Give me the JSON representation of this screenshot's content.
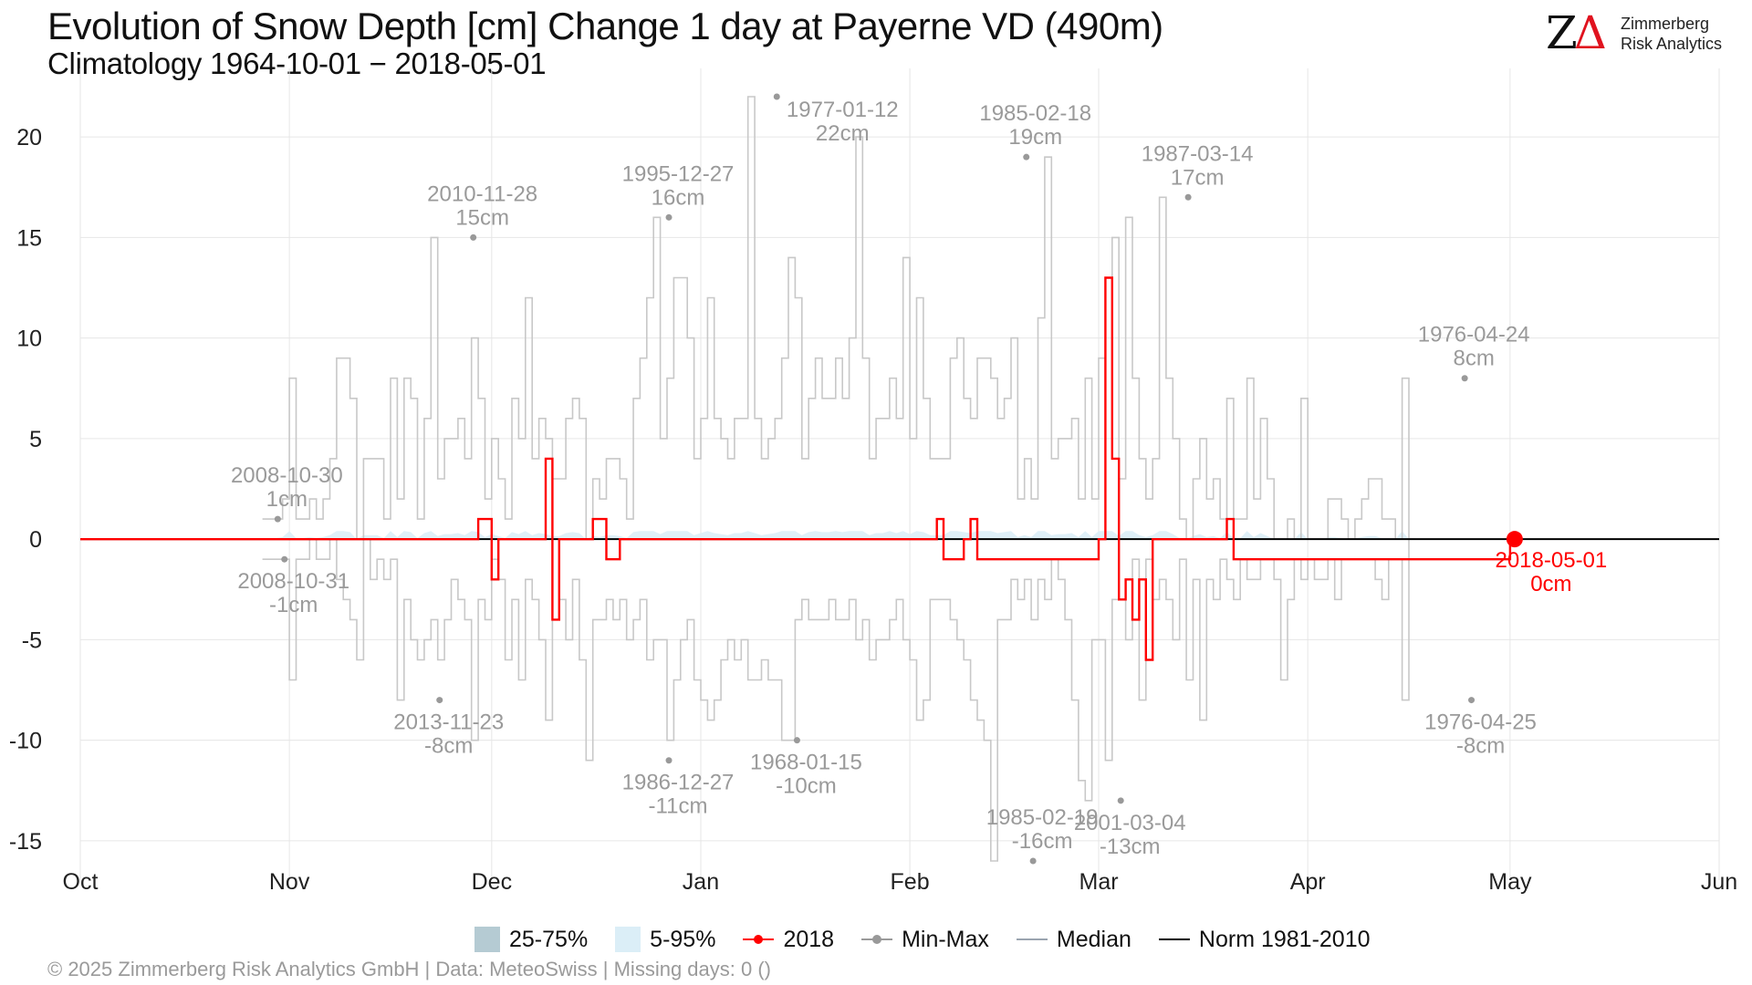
{
  "header": {
    "title": "Evolution of Snow Depth [cm] Change 1 day at Payerne  VD (490m)",
    "subtitle": "Climatology 1964-10-01 − 2018-05-01"
  },
  "logo": {
    "mark_z": "Z",
    "mark_delta": "Δ",
    "line1": "Zimmerberg",
    "line2": "Risk Analytics"
  },
  "footer": "©  2025 Zimmerberg Risk Analytics GmbH | Data: MeteoSwiss | Missing days: 0 ()",
  "legend": {
    "band_25_75": "25-75%",
    "band_5_95": "5-95%",
    "year": "2018",
    "minmax": "Min-Max",
    "median": "Median",
    "norm": "Norm 1981-2010"
  },
  "colors": {
    "band_25_75": "#b5cbd3",
    "band_5_95": "#dbeef7",
    "year": "#ff0000",
    "minmax": "#c8c8c8",
    "minmax_point": "#999999",
    "median": "#9aa4b0",
    "norm": "#000000",
    "annotation": "#9a9a9a",
    "grid": "#e6e6e6"
  },
  "chart_data": {
    "type": "line",
    "x_axis": {
      "start": "1964-10-01",
      "end": "1965-06-01",
      "tick_labels": [
        "Oct",
        "Nov",
        "Dec",
        "Jan",
        "Feb",
        "Mar",
        "Apr",
        "May",
        "Jun"
      ],
      "tick_days": [
        0,
        31,
        61,
        92,
        123,
        151,
        182,
        212,
        243
      ]
    },
    "y_axis": {
      "ylim": [
        -16.5,
        22.5
      ],
      "ticks": [
        -15,
        -10,
        -5,
        0,
        5,
        10,
        15,
        20
      ]
    },
    "grid": true,
    "legend_position": "bottom",
    "series": [
      {
        "name": "Min-Max",
        "kind": "step-range",
        "days": [
          27,
          28,
          29,
          30,
          31,
          32,
          33,
          34,
          35,
          36,
          37,
          38,
          39,
          40,
          41,
          42,
          43,
          44,
          45,
          46,
          47,
          48,
          49,
          50,
          51,
          52,
          53,
          54,
          55,
          56,
          57,
          58,
          59,
          60,
          61,
          62,
          63,
          64,
          65,
          66,
          67,
          68,
          69,
          70,
          71,
          72,
          73,
          74,
          75,
          76,
          77,
          78,
          79,
          80,
          81,
          82,
          83,
          84,
          85,
          86,
          87,
          88,
          89,
          90,
          91,
          92,
          93,
          94,
          95,
          96,
          97,
          98,
          99,
          100,
          101,
          102,
          103,
          104,
          105,
          106,
          107,
          108,
          109,
          110,
          111,
          112,
          113,
          114,
          115,
          116,
          117,
          118,
          119,
          120,
          121,
          122,
          123,
          124,
          125,
          126,
          127,
          128,
          129,
          130,
          131,
          132,
          133,
          134,
          135,
          136,
          137,
          138,
          139,
          140,
          141,
          142,
          143,
          144,
          145,
          146,
          147,
          148,
          149,
          150,
          151,
          152,
          153,
          154,
          155,
          156,
          157,
          158,
          159,
          160,
          161,
          162,
          163,
          164,
          165,
          166,
          167,
          168,
          169,
          170,
          171,
          172,
          173,
          174,
          175,
          176,
          177,
          178,
          179,
          180,
          181,
          182,
          183,
          184,
          185,
          186,
          187,
          188,
          189,
          190,
          191,
          192,
          193,
          194,
          195,
          196,
          197,
          198,
          199,
          200,
          201,
          202,
          203,
          204,
          205,
          206,
          207,
          208,
          209,
          210,
          211
        ],
        "max": [
          1,
          1,
          1,
          2,
          8,
          1,
          1,
          2,
          1,
          2,
          4,
          9,
          9,
          7,
          0,
          4,
          4,
          4,
          1,
          8,
          2,
          8,
          7,
          1,
          6,
          15,
          3,
          5,
          5,
          6,
          4,
          10,
          7,
          2,
          5,
          3,
          1,
          7,
          5,
          12,
          4,
          6,
          5,
          3,
          3,
          6,
          7,
          6,
          0,
          3,
          2,
          4,
          4,
          3,
          1,
          7,
          9,
          12,
          16,
          5,
          8,
          13,
          13,
          10,
          4,
          6,
          12,
          6,
          5,
          4,
          6,
          6,
          22,
          6,
          4,
          5,
          6,
          9,
          14,
          12,
          4,
          7,
          9,
          7,
          7,
          9,
          7,
          10,
          20,
          9,
          4,
          6,
          6,
          8,
          6,
          14,
          5,
          12,
          7,
          4,
          4,
          4,
          9,
          10,
          7,
          6,
          9,
          9,
          8,
          6,
          7,
          10,
          2,
          4,
          2,
          11,
          19,
          4,
          5,
          5,
          6,
          2,
          8,
          2,
          9,
          13,
          15,
          3,
          16,
          8,
          4,
          2,
          4,
          17,
          8,
          5,
          1,
          0,
          3,
          5,
          2,
          3,
          1,
          7,
          1,
          1,
          8,
          2,
          6,
          3,
          0,
          0,
          1,
          0,
          7,
          0,
          0,
          0,
          2,
          2,
          1,
          0,
          1,
          2,
          3,
          3,
          1,
          1,
          0,
          8,
          0
        ]
      },
      {
        "name": "Min-Max",
        "kind": "step-range-low",
        "min": [
          -1,
          -1,
          -1,
          -1,
          -7,
          -1,
          -1,
          0,
          -1,
          -1,
          0,
          -2,
          -3,
          -4,
          -6,
          0,
          -2,
          -1,
          -2,
          -1,
          -8,
          -3,
          -5,
          -6,
          -5,
          -4,
          -6,
          -4,
          -2,
          -3,
          -4,
          -10,
          -3,
          -4,
          -1,
          -2,
          -6,
          -3,
          -7,
          -2,
          -3,
          -5,
          -9,
          -4,
          -3,
          -5,
          -2,
          -6,
          -11,
          -4,
          -4,
          -3,
          -4,
          -3,
          -5,
          -4,
          -3,
          -6,
          -5,
          -5,
          -10,
          -7,
          -5,
          -4,
          -7,
          -8,
          -9,
          -8,
          -6,
          -5,
          -6,
          -5,
          -7,
          -7,
          -6,
          -7,
          -7,
          -10,
          -10,
          -4,
          -3,
          -4,
          -4,
          -4,
          -3,
          -4,
          -4,
          -3,
          -5,
          -4,
          -6,
          -5,
          -5,
          -4,
          -3,
          -5,
          -6,
          -9,
          -8,
          -3,
          -3,
          -3,
          -4,
          -5,
          -6,
          -8,
          -9,
          -10,
          -16,
          -4,
          -4,
          -2,
          -3,
          -2,
          -4,
          -2,
          -3,
          -1,
          -2,
          -4,
          -8,
          -12,
          -13,
          -5,
          -5,
          -11,
          -3,
          -3,
          -5,
          -1,
          -8,
          -1,
          -3,
          -2,
          -3,
          -5,
          -1,
          -7,
          -2,
          -9,
          -2,
          -3,
          -1,
          -2,
          -3,
          -1,
          -2,
          -2,
          -1,
          -1,
          -2,
          -7,
          -3,
          -1,
          -2,
          -1,
          -2,
          -2,
          -1,
          -3,
          -1,
          -1,
          -1,
          -1,
          -1,
          -2,
          -3,
          -1,
          -1,
          -8,
          0
        ]
      },
      {
        "name": "2018",
        "kind": "step",
        "days": [
          0,
          59,
          60,
          61,
          62,
          63,
          64,
          65,
          66,
          67,
          68,
          69,
          70,
          71,
          72,
          73,
          74,
          75,
          76,
          77,
          78,
          79,
          80,
          81,
          82,
          83,
          84,
          85,
          86,
          87,
          88,
          89,
          90,
          91,
          126,
          127,
          128,
          131,
          132,
          133,
          151,
          152,
          153,
          154,
          155,
          156,
          157,
          158,
          159,
          160,
          161,
          162,
          169,
          170,
          171,
          212
        ],
        "values": [
          0,
          1,
          1,
          -2,
          0,
          0,
          0,
          0,
          0,
          0,
          0,
          4,
          -4,
          0,
          0,
          0,
          0,
          0,
          1,
          1,
          -1,
          -1,
          0,
          0,
          0,
          0,
          0,
          0,
          0,
          0,
          0,
          0,
          0,
          0,
          0,
          1,
          -1,
          0,
          1,
          -1,
          0,
          13,
          4,
          -3,
          -2,
          -4,
          -2,
          -6,
          0,
          0,
          0,
          0,
          0,
          1,
          -1,
          0
        ]
      },
      {
        "name": "Norm 1981-2010",
        "kind": "line",
        "days": [
          0,
          243
        ],
        "values": [
          0,
          0
        ]
      }
    ],
    "extreme_points": [
      {
        "day": 29,
        "value": 1,
        "date": "2008-10-30",
        "label": "1cm",
        "anchor": "above"
      },
      {
        "day": 30,
        "value": -1,
        "date": "2008-10-31",
        "label": "-1cm",
        "anchor": "below"
      },
      {
        "day": 58,
        "value": 15,
        "date": "2010-11-28",
        "label": "15cm",
        "anchor": "above"
      },
      {
        "day": 53,
        "value": -8,
        "date": "2013-11-23",
        "label": "-8cm",
        "anchor": "below"
      },
      {
        "day": 87,
        "value": 16,
        "date": "1995-12-27",
        "label": "16cm",
        "anchor": "above"
      },
      {
        "day": 87,
        "value": -11,
        "date": "1986-12-27",
        "label": "-11cm",
        "anchor": "below"
      },
      {
        "day": 103,
        "value": 22,
        "date": "1977-01-12",
        "label": "22cm",
        "anchor": "right"
      },
      {
        "day": 106,
        "value": -10,
        "date": "1968-01-15",
        "label": "-10cm",
        "anchor": "below"
      },
      {
        "day": 140,
        "value": 19,
        "date": "1985-02-18",
        "label": "19cm",
        "anchor": "above"
      },
      {
        "day": 141,
        "value": -16,
        "date": "1985-02-19",
        "label": "-16cm",
        "anchor": "above"
      },
      {
        "day": 154,
        "value": -13,
        "date": "2001-03-04",
        "label": "-13cm",
        "anchor": "below"
      },
      {
        "day": 164,
        "value": 17,
        "date": "1987-03-14",
        "label": "17cm",
        "anchor": "above"
      },
      {
        "day": 205,
        "value": 8,
        "date": "1976-04-24",
        "label": "8cm",
        "anchor": "above"
      },
      {
        "day": 206,
        "value": -8,
        "date": "1976-04-25",
        "label": "-8cm",
        "anchor": "below"
      }
    ],
    "current_point": {
      "day": 212,
      "value": 0,
      "date": "2018-05-01",
      "label": "0cm"
    }
  }
}
